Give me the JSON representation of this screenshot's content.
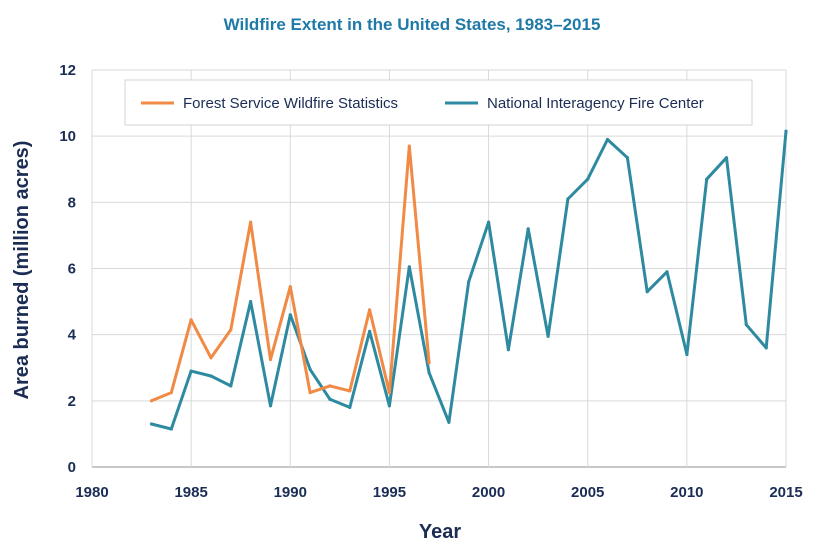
{
  "chart_data": {
    "type": "line",
    "title": "Wildfire Extent in the United States, 1983–2015",
    "xlabel": "Year",
    "ylabel": "Area burned (million acres)",
    "xlim": [
      1980,
      2015
    ],
    "ylim": [
      0,
      12
    ],
    "x_ticks": [
      "1980",
      "1985",
      "1990",
      "1995",
      "2000",
      "2005",
      "2010",
      "2015"
    ],
    "y_ticks": [
      "0",
      "2",
      "4",
      "6",
      "8",
      "10",
      "12"
    ],
    "grid": "vertical and horizontal",
    "legend_position": "top",
    "series": [
      {
        "name": "Forest Service Wildfire Statistics",
        "color": "#f08a45",
        "x": [
          1983,
          1984,
          1985,
          1986,
          1987,
          1988,
          1989,
          1990,
          1991,
          1992,
          1993,
          1994,
          1995,
          1996,
          1997
        ],
        "values": [
          2.0,
          2.25,
          4.45,
          3.3,
          4.15,
          7.4,
          3.25,
          5.45,
          2.25,
          2.45,
          2.3,
          4.75,
          2.25,
          9.7,
          3.15
        ]
      },
      {
        "name": "National Interagency Fire Center",
        "color": "#2e8aa0",
        "x": [
          1983,
          1984,
          1985,
          1986,
          1987,
          1988,
          1989,
          1990,
          1991,
          1992,
          1993,
          1994,
          1995,
          1996,
          1997,
          1998,
          1999,
          2000,
          2001,
          2002,
          2003,
          2004,
          2005,
          2006,
          2007,
          2008,
          2009,
          2010,
          2011,
          2012,
          2013,
          2014,
          2015
        ],
        "values": [
          1.3,
          1.15,
          2.9,
          2.75,
          2.45,
          5.0,
          1.85,
          4.6,
          2.95,
          2.05,
          1.8,
          4.1,
          1.85,
          6.05,
          2.85,
          1.35,
          5.6,
          7.4,
          3.55,
          7.2,
          3.95,
          8.1,
          8.7,
          9.9,
          9.35,
          5.3,
          5.9,
          3.4,
          8.7,
          9.35,
          4.3,
          3.6,
          10.15
        ]
      }
    ]
  }
}
